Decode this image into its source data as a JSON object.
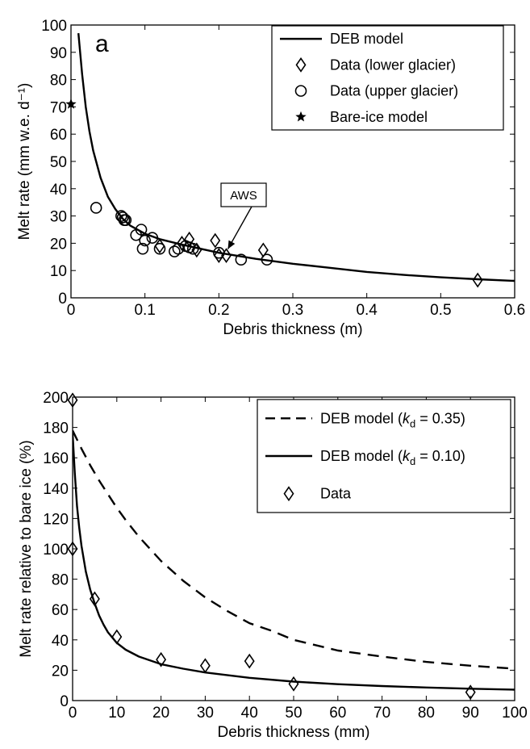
{
  "chart_data": [
    {
      "type": "scatter",
      "panel_label": "a",
      "xlabel": "Debris thickness (m)",
      "ylabel": "Melt rate (mm w.e. d⁻¹)",
      "xlim": [
        0,
        0.6
      ],
      "ylim": [
        0,
        100
      ],
      "xticks": [
        "0",
        "0.1",
        "0.2",
        "0.3",
        "0.4",
        "0.5",
        "0.6"
      ],
      "yticks": [
        "0",
        "10",
        "20",
        "30",
        "40",
        "50",
        "60",
        "70",
        "80",
        "90",
        "100"
      ],
      "grid": false,
      "legend_position": "top-right",
      "annotation": {
        "text": "AWS",
        "target": [
          0.21,
          17
        ]
      },
      "series": [
        {
          "name": "DEB model",
          "kind": "line",
          "style": "solid",
          "x": [
            0.01,
            0.015,
            0.02,
            0.025,
            0.03,
            0.04,
            0.05,
            0.06,
            0.07,
            0.08,
            0.1,
            0.12,
            0.15,
            0.2,
            0.25,
            0.3,
            0.35,
            0.4,
            0.45,
            0.5,
            0.55,
            0.6
          ],
          "y": [
            97,
            82,
            70,
            61,
            54,
            44,
            37,
            32.5,
            29,
            26.5,
            23.5,
            21.5,
            19.5,
            16.5,
            14.3,
            12.5,
            11.0,
            9.5,
            8.4,
            7.5,
            6.8,
            6.2
          ]
        },
        {
          "name": "Data (lower glacier)",
          "kind": "marker",
          "marker": "diamond",
          "x": [
            0.12,
            0.15,
            0.16,
            0.17,
            0.195,
            0.2,
            0.21,
            0.26,
            0.55
          ],
          "y": [
            19,
            20,
            21.5,
            17.5,
            21,
            15.5,
            15.5,
            17.5,
            6.5
          ]
        },
        {
          "name": "Data (upper glacier)",
          "kind": "marker",
          "marker": "circle",
          "x": [
            0.034,
            0.068,
            0.07,
            0.072,
            0.074,
            0.088,
            0.095,
            0.097,
            0.1,
            0.11,
            0.12,
            0.14,
            0.145,
            0.155,
            0.16,
            0.165,
            0.2,
            0.23,
            0.265
          ],
          "y": [
            33,
            30,
            29.5,
            28.5,
            28.5,
            23,
            25,
            18,
            21,
            22,
            18,
            17,
            18,
            19,
            18.5,
            18,
            16.5,
            14,
            14
          ]
        },
        {
          "name": "Bare-ice model",
          "kind": "marker",
          "marker": "star",
          "x": [
            0
          ],
          "y": [
            71
          ]
        }
      ]
    },
    {
      "type": "scatter",
      "xlabel": "Debris thickness (mm)",
      "ylabel": "Melt rate relative to bare ice (%)",
      "xlim": [
        0,
        100
      ],
      "ylim": [
        0,
        200
      ],
      "xticks": [
        "0",
        "10",
        "20",
        "30",
        "40",
        "50",
        "60",
        "70",
        "80",
        "90",
        "100"
      ],
      "yticks": [
        "0",
        "20",
        "40",
        "60",
        "80",
        "100",
        "120",
        "140",
        "160",
        "180",
        "200"
      ],
      "grid": false,
      "legend_position": "top-right",
      "series": [
        {
          "name": "DEB model (kd = 0.35)",
          "legend_prefix": "DEB model (",
          "legend_var": "k",
          "legend_sub": "d",
          "legend_suffix": " = 0.35)",
          "kind": "line",
          "style": "dashed",
          "x": [
            0,
            2,
            4,
            6,
            8,
            10,
            12,
            15,
            20,
            25,
            30,
            35,
            40,
            45,
            50,
            60,
            70,
            80,
            90,
            100
          ],
          "y": [
            178,
            166,
            155,
            145,
            136,
            127,
            119,
            108,
            92,
            79,
            68,
            59,
            51,
            46,
            40,
            33,
            29,
            25.5,
            23,
            21
          ]
        },
        {
          "name": "DEB model (kd = 0.10)",
          "legend_prefix": "DEB model (",
          "legend_var": "k",
          "legend_sub": "d",
          "legend_suffix": " = 0.10)",
          "kind": "line",
          "style": "solid",
          "x": [
            0,
            0.5,
            1,
            1.5,
            2,
            3,
            4,
            5,
            6,
            7,
            8,
            10,
            12,
            15,
            20,
            25,
            30,
            40,
            50,
            60,
            70,
            80,
            90,
            100
          ],
          "y": [
            176,
            150,
            128,
            114,
            102,
            85,
            73,
            64,
            56,
            50,
            45,
            38,
            33.5,
            29,
            24,
            21,
            18.5,
            15,
            12.5,
            10.8,
            9.6,
            8.6,
            7.8,
            7.2
          ]
        },
        {
          "name": "Data",
          "kind": "marker",
          "marker": "diamond",
          "x": [
            0,
            0,
            5,
            10,
            20,
            30,
            40,
            50,
            90
          ],
          "y": [
            198,
            100,
            67,
            42,
            27,
            23,
            26,
            11,
            5.5
          ]
        }
      ]
    }
  ]
}
